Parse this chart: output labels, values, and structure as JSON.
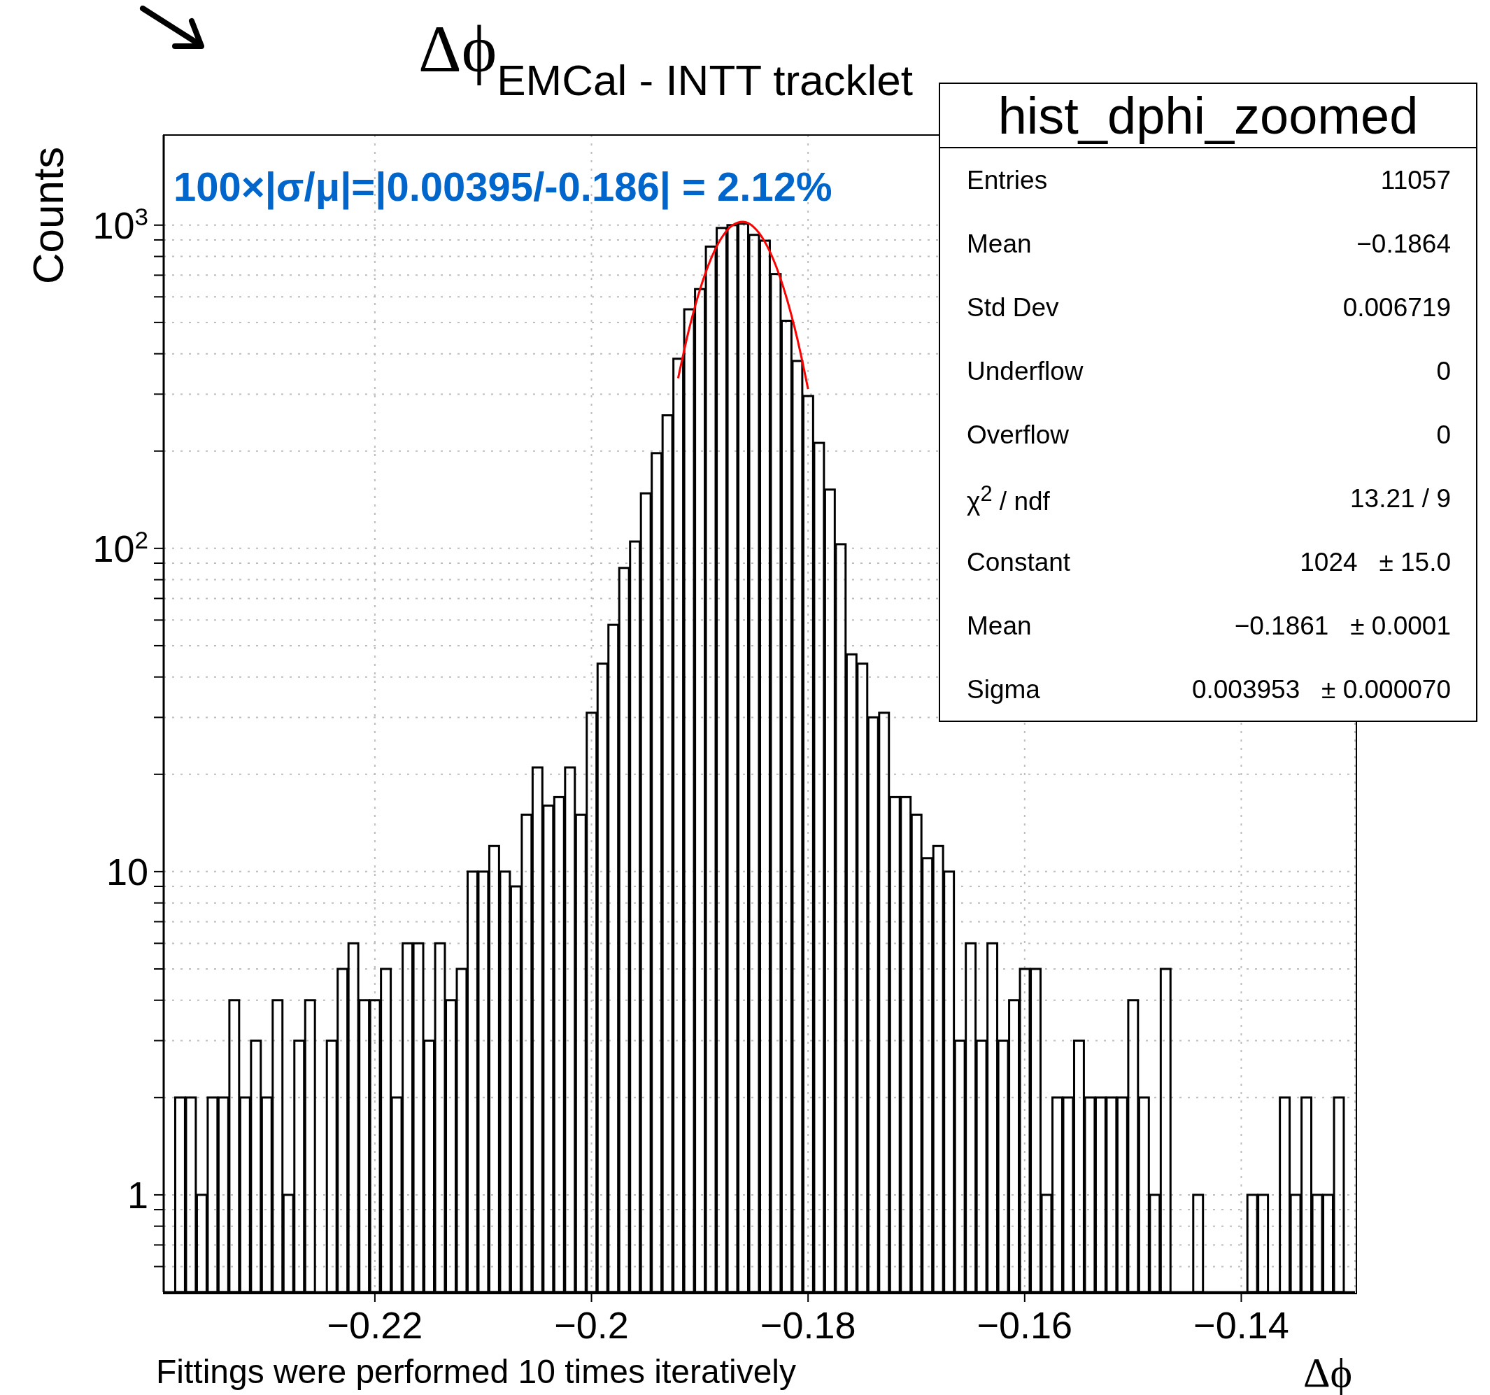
{
  "chart_data": {
    "type": "histogram",
    "title": "Δϕ$_{EMCal - INTT tracklet}$",
    "xlabel": "Δϕ",
    "ylabel": "Counts",
    "log": true,
    "grid": true,
    "bins": [
      -0.2395,
      -0.2385,
      -0.2375,
      -0.2365,
      -0.2355,
      -0.2345,
      -0.2335,
      -0.2325,
      -0.2315,
      -0.2305,
      -0.2295,
      -0.2285,
      -0.2275,
      -0.2265,
      -0.2255,
      -0.2245,
      -0.2235,
      -0.2225,
      -0.2215,
      -0.2205,
      -0.2195,
      -0.2185,
      -0.2175,
      -0.2165,
      -0.2155,
      -0.2145,
      -0.2135,
      -0.2125,
      -0.2115,
      -0.2105,
      -0.2095,
      -0.2085,
      -0.2075,
      -0.2065,
      -0.2055,
      -0.2045,
      -0.2035,
      -0.2025,
      -0.2015,
      -0.2005,
      -0.1995,
      -0.1985,
      -0.1975,
      -0.1965,
      -0.1955,
      -0.1945,
      -0.1935,
      -0.1925,
      -0.1915,
      -0.1905,
      -0.1895,
      -0.1885,
      -0.1875,
      -0.1865,
      -0.1855,
      -0.1845,
      -0.1835,
      -0.1825,
      -0.1815,
      -0.1805,
      -0.1795,
      -0.1785,
      -0.1775,
      -0.1765,
      -0.1755,
      -0.1745,
      -0.1735,
      -0.1725,
      -0.1715,
      -0.1705,
      -0.1695,
      -0.1685,
      -0.1675,
      -0.1665,
      -0.1655,
      -0.1645,
      -0.1635,
      -0.1625,
      -0.1615,
      -0.1605,
      -0.1595,
      -0.1585,
      -0.1575,
      -0.1565,
      -0.1555,
      -0.1545,
      -0.1535,
      -0.1525,
      -0.1515,
      -0.1505,
      -0.1495,
      -0.1485,
      -0.1475,
      -0.1465,
      -0.1455,
      -0.1445,
      -0.1435,
      -0.1425,
      -0.1415,
      -0.1405,
      -0.1395,
      -0.1385,
      -0.1375,
      -0.1365,
      -0.1355,
      -0.1345,
      -0.1335,
      -0.1325,
      -0.1315,
      -0.1305,
      -0.1295
    ],
    "series": [
      {
        "color": "#000000",
        "values": [
          null,
          2,
          2,
          1,
          2,
          2,
          4,
          2,
          3,
          2,
          4,
          1,
          3,
          4,
          null,
          3,
          5,
          6,
          4,
          4,
          5,
          2,
          6,
          6,
          3,
          6,
          4,
          5,
          10,
          10,
          12,
          10,
          9,
          15,
          21,
          16,
          17,
          21,
          15,
          31,
          44,
          58,
          87,
          105,
          148,
          197,
          258,
          386,
          549,
          634,
          858,
          980,
          1000,
          1010,
          933,
          895,
          706,
          506,
          380,
          296,
          212,
          152,
          103,
          47,
          44,
          30,
          31,
          17,
          17,
          15,
          11,
          12,
          10,
          3,
          6,
          3,
          6,
          3,
          4,
          5,
          5,
          1,
          2,
          2,
          3,
          2,
          2,
          2,
          2,
          4,
          2,
          1,
          5,
          null,
          null,
          1,
          null,
          null,
          null,
          null,
          1,
          1,
          null,
          2,
          1,
          2,
          1,
          1,
          2,
          null
        ]
      },
      {
        "type": "line",
        "color": "#ff0000",
        "x": [
          -0.192,
          -0.191,
          -0.19,
          -0.189,
          -0.188,
          -0.187,
          -0.186,
          -0.185,
          -0.184,
          -0.183,
          -0.182,
          -0.181,
          -0.18
        ],
        "values": [
          336,
          475,
          629,
          782,
          912,
          998,
          1024,
          985,
          889,
          753,
          598,
          446,
          311
        ]
      }
    ],
    "xlim": [
      -0.2395,
      -0.1295
    ],
    "xticks": [
      {
        "value": -0.22,
        "label": "−0.22"
      },
      {
        "value": -0.2,
        "label": "−0.2"
      },
      {
        "value": -0.18,
        "label": "−0.18"
      },
      {
        "value": -0.16,
        "label": "−0.16"
      },
      {
        "value": -0.14,
        "label": "−0.14"
      }
    ],
    "ylim": [
      0.5,
      1900
    ],
    "yticks": [
      {
        "value": 0.6,
        "label": null
      },
      {
        "value": 0.7,
        "label": null
      },
      {
        "value": 0.8,
        "label": null
      },
      {
        "value": 0.9,
        "label": null
      },
      1,
      {
        "value": 2,
        "label": null
      },
      {
        "value": 3,
        "label": null
      },
      {
        "value": 4,
        "label": null
      },
      {
        "value": 5,
        "label": null
      },
      {
        "value": 6,
        "label": null
      },
      {
        "value": 7,
        "label": null
      },
      {
        "value": 8,
        "label": null
      },
      {
        "value": 9,
        "label": null
      },
      10,
      {
        "value": 20,
        "label": null
      },
      {
        "value": 30,
        "label": null
      },
      {
        "value": 40,
        "label": null
      },
      {
        "value": 50,
        "label": null
      },
      {
        "value": 60,
        "label": null
      },
      {
        "value": 70,
        "label": null
      },
      {
        "value": 80,
        "label": null
      },
      {
        "value": 90,
        "label": null
      },
      {
        "value": 100,
        "label": "10$^{2}$"
      },
      {
        "value": 200,
        "label": null
      },
      {
        "value": 300,
        "label": null
      },
      {
        "value": 400,
        "label": null
      },
      {
        "value": 500,
        "label": null
      },
      {
        "value": 600,
        "label": null
      },
      {
        "value": 700,
        "label": null
      },
      {
        "value": 800,
        "label": null
      },
      {
        "value": 900,
        "label": null
      },
      {
        "value": 1000,
        "label": "10$^{3}$"
      }
    ],
    "annotations": [
      "100×|σ/μ|=|0.00395/-0.186| = 2.12%",
      "hist_dphi_zoomed",
      "Entries",
      "11057",
      "Mean",
      "−0.1864",
      "Std Dev",
      "0.006719",
      "Underflow",
      "0",
      "Overflow",
      "0",
      "χ$^{2}$ / ndf",
      "13.21 / 9",
      "Constant",
      "1024   ± 15.0",
      "Mean",
      "−0.1861   ± 0.0001",
      "Sigma",
      "0.003953   ± 0.000070",
      "Fittings were performed 10 times iteratively"
    ]
  }
}
